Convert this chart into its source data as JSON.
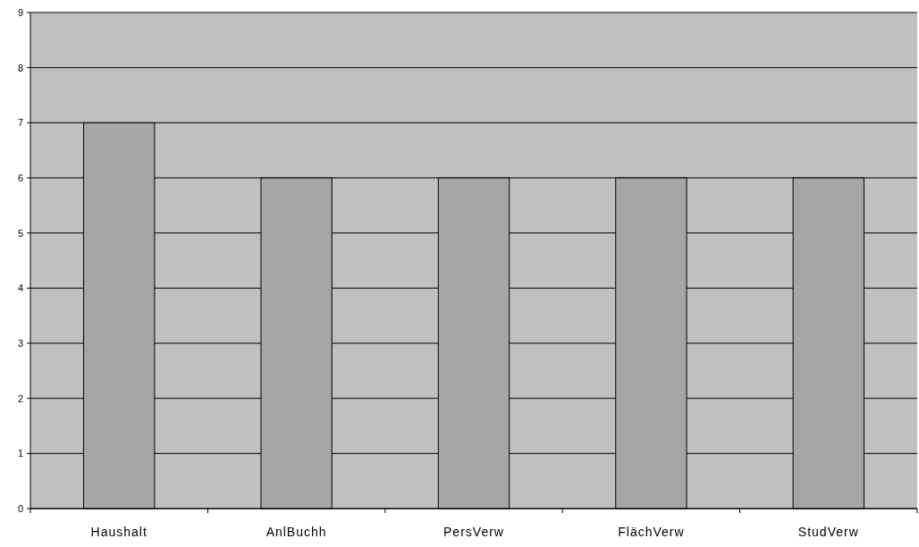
{
  "chart_data": {
    "type": "bar",
    "categories": [
      "Haushalt",
      "AnlBuchh",
      "PersVerw",
      "FlächVerw",
      "StudVerw"
    ],
    "values": [
      7,
      6,
      6,
      6,
      6
    ],
    "color": "#a6a6a6",
    "ylim": [
      0,
      9
    ],
    "yticks": [
      0,
      1,
      2,
      3,
      4,
      5,
      6,
      7,
      8,
      9
    ],
    "grid": "y"
  }
}
